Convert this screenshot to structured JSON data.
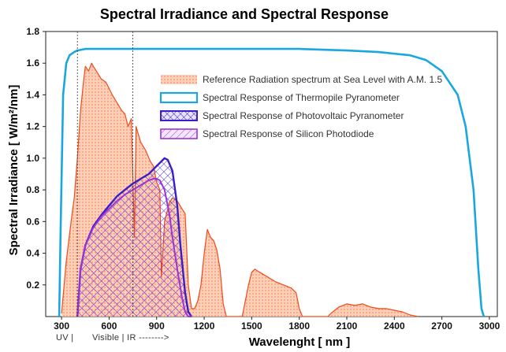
{
  "chart_data": {
    "type": "area",
    "title": "Spectral Irradiance and Spectral Response",
    "xlabel": "Wavelenght [ nm ]",
    "ylabel": "Spectral Irradiance [ W/m²/nm]",
    "xlim": [
      200,
      3050
    ],
    "ylim": [
      0,
      1.8
    ],
    "x_ticks": [
      "300",
      "600",
      "900",
      "1200",
      "1500",
      "1800",
      "2100",
      "2400",
      "2700",
      "3000"
    ],
    "y_ticks": [
      "0.2",
      "0.4",
      "0.6",
      "0.8",
      "1.0",
      "1.2",
      "1.4",
      "1.6",
      "1.8"
    ],
    "band_labels": [
      "UV |",
      "Visible | IR -------->"
    ],
    "band_markers_nm": [
      400,
      750
    ],
    "grid": false,
    "legend_position": "top-right",
    "series": [
      {
        "name": "Reference Radiation spectrum at Sea Level with A.M. 1.5",
        "color": "#f04a1c",
        "x": [
          300,
          330,
          360,
          380,
          400,
          420,
          440,
          450,
          470,
          490,
          500,
          520,
          550,
          580,
          600,
          620,
          650,
          680,
          700,
          720,
          740,
          760,
          770,
          800,
          830,
          860,
          880,
          900,
          920,
          930,
          950,
          980,
          1000,
          1030,
          1060,
          1080,
          1100,
          1120,
          1140,
          1160,
          1180,
          1200,
          1220,
          1240,
          1260,
          1280,
          1300,
          1320,
          1340,
          1360,
          1400,
          1440,
          1460,
          1480,
          1500,
          1520,
          1550,
          1600,
          1650,
          1700,
          1750,
          1780,
          1800,
          1820,
          1850,
          1900,
          1950,
          1980,
          2000,
          2050,
          2100,
          2150,
          2200,
          2250,
          2300,
          2350,
          2400,
          2450,
          2500,
          2550
        ],
        "y": [
          0.02,
          0.35,
          0.6,
          0.75,
          1.0,
          1.3,
          1.5,
          1.58,
          1.55,
          1.6,
          1.58,
          1.55,
          1.5,
          1.48,
          1.44,
          1.4,
          1.35,
          1.3,
          1.28,
          1.2,
          1.25,
          0.5,
          1.2,
          1.1,
          1.05,
          0.98,
          0.95,
          0.85,
          0.8,
          0.25,
          0.6,
          0.72,
          0.75,
          0.73,
          0.68,
          0.65,
          0.2,
          0.05,
          0.05,
          0.1,
          0.2,
          0.4,
          0.55,
          0.5,
          0.48,
          0.42,
          0.3,
          0.08,
          0.0,
          0.0,
          0.0,
          0.0,
          0.1,
          0.2,
          0.28,
          0.3,
          0.28,
          0.25,
          0.22,
          0.2,
          0.18,
          0.15,
          0.05,
          0.0,
          0.0,
          0.0,
          0.0,
          0.0,
          0.02,
          0.06,
          0.08,
          0.07,
          0.08,
          0.06,
          0.05,
          0.05,
          0.04,
          0.03,
          0.01,
          0.0
        ]
      },
      {
        "name": "Spectral Response of Thermopile Pyranometer",
        "color": "#1aa7e0",
        "x": [
          285,
          295,
          310,
          330,
          350,
          380,
          400,
          450,
          500,
          600,
          800,
          1000,
          1200,
          1500,
          1800,
          2100,
          2300,
          2500,
          2600,
          2700,
          2800,
          2850,
          2900,
          2930,
          2950,
          2965
        ],
        "y": [
          0.0,
          0.6,
          1.4,
          1.6,
          1.65,
          1.67,
          1.68,
          1.69,
          1.69,
          1.69,
          1.69,
          1.69,
          1.69,
          1.69,
          1.69,
          1.68,
          1.67,
          1.65,
          1.62,
          1.55,
          1.4,
          1.2,
          0.8,
          0.3,
          0.05,
          0.0
        ]
      },
      {
        "name": "Spectral Response of Photovoltaic Pyranometer",
        "color": "#3a1fc8",
        "x": [
          400,
          420,
          450,
          500,
          550,
          600,
          650,
          700,
          750,
          800,
          850,
          900,
          930,
          950,
          970,
          1000,
          1030,
          1050,
          1080,
          1100,
          1120
        ],
        "y": [
          0.0,
          0.3,
          0.45,
          0.57,
          0.64,
          0.7,
          0.76,
          0.8,
          0.84,
          0.87,
          0.9,
          0.95,
          0.98,
          1.0,
          0.99,
          0.92,
          0.7,
          0.45,
          0.15,
          0.03,
          0.0
        ]
      },
      {
        "name": "Spectral Response of Silicon Photodiode",
        "color": "#9a35d8",
        "x": [
          400,
          420,
          450,
          500,
          550,
          600,
          650,
          700,
          750,
          800,
          850,
          880,
          900,
          920,
          950,
          980,
          1000,
          1030,
          1060,
          1080,
          1100,
          1120
        ],
        "y": [
          0.0,
          0.3,
          0.45,
          0.56,
          0.63,
          0.68,
          0.73,
          0.77,
          0.8,
          0.83,
          0.86,
          0.87,
          0.87,
          0.86,
          0.8,
          0.65,
          0.5,
          0.3,
          0.12,
          0.03,
          0.0,
          0.0
        ]
      }
    ]
  }
}
